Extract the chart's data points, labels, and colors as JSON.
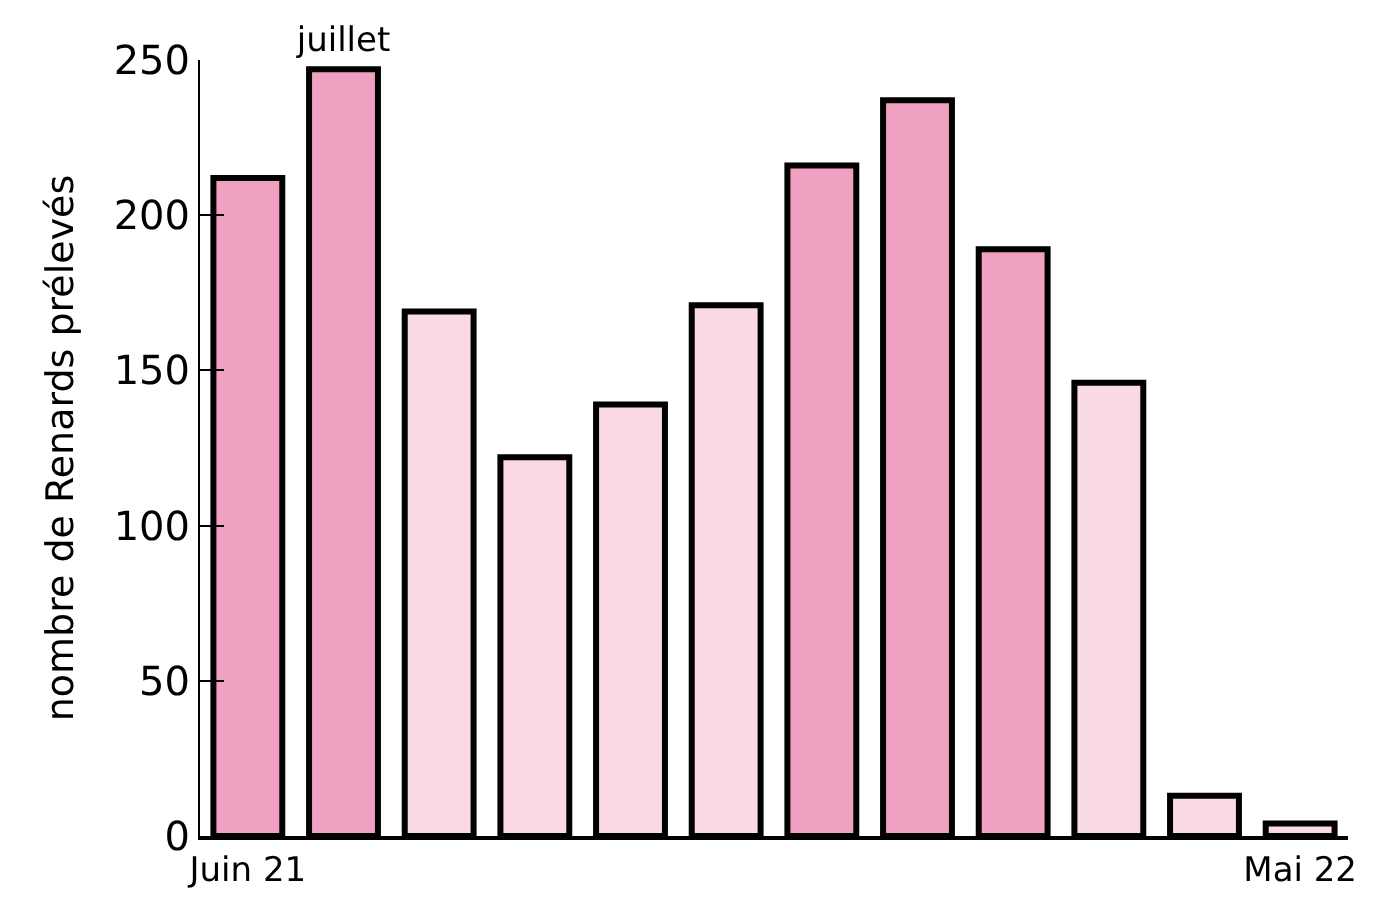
{
  "chart_data": {
    "type": "bar",
    "ylabel": "nombre de Renards prélevés",
    "categories": [
      "Juin 21",
      "juillet",
      null,
      null,
      null,
      null,
      null,
      null,
      null,
      null,
      null,
      "Mai 22"
    ],
    "values": [
      212,
      247,
      169,
      122,
      139,
      171,
      216,
      237,
      189,
      146,
      13,
      4
    ],
    "colors": [
      "#f0a0c0",
      "#f0a0c0",
      "#f9d9e6",
      "#f9d9e6",
      "#f9d9e6",
      "#f9d9e6",
      "#f0a0c0",
      "#f0a0c0",
      "#f0a0c0",
      "#f9d9e6",
      "#f9d9e6",
      "#f9d9e6"
    ],
    "ylim": [
      0,
      250
    ],
    "yticks": [
      0,
      50,
      100,
      150,
      200,
      250
    ]
  }
}
